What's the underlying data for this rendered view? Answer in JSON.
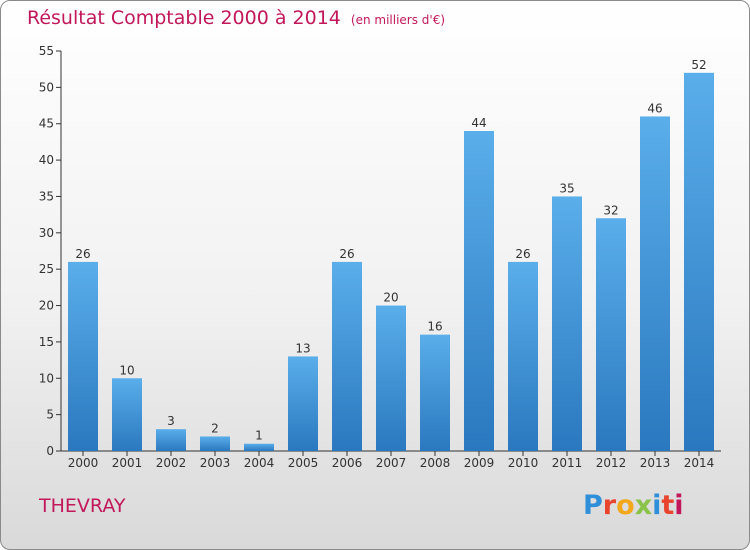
{
  "chart_data": {
    "type": "bar",
    "title": "Résultat Comptable 2000 à 2014",
    "unit_label": "(en milliers d'€)",
    "categories": [
      "2000",
      "2001",
      "2002",
      "2003",
      "2004",
      "2005",
      "2006",
      "2007",
      "2008",
      "2009",
      "2010",
      "2011",
      "2012",
      "2013",
      "2014"
    ],
    "values": [
      26,
      10,
      3,
      2,
      1,
      13,
      26,
      20,
      16,
      44,
      26,
      35,
      32,
      46,
      52
    ],
    "ylim": [
      0,
      55
    ],
    "yticks": [
      0,
      5,
      10,
      15,
      20,
      25,
      30,
      35,
      40,
      45,
      50,
      55
    ],
    "xlabel": "",
    "ylabel": "",
    "grid": false,
    "bar_color": "#3d8fd6"
  },
  "footer": {
    "commune": "THEVRAY",
    "logo_text": "Proxiti",
    "logo_colors": [
      "#2f8fd8",
      "#e8442e",
      "#f3a81b",
      "#8bc34a",
      "#2f8fd8",
      "#e8442e",
      "#c2185b"
    ]
  },
  "colors": {
    "title": "#c2185b",
    "axis": "#333333"
  }
}
